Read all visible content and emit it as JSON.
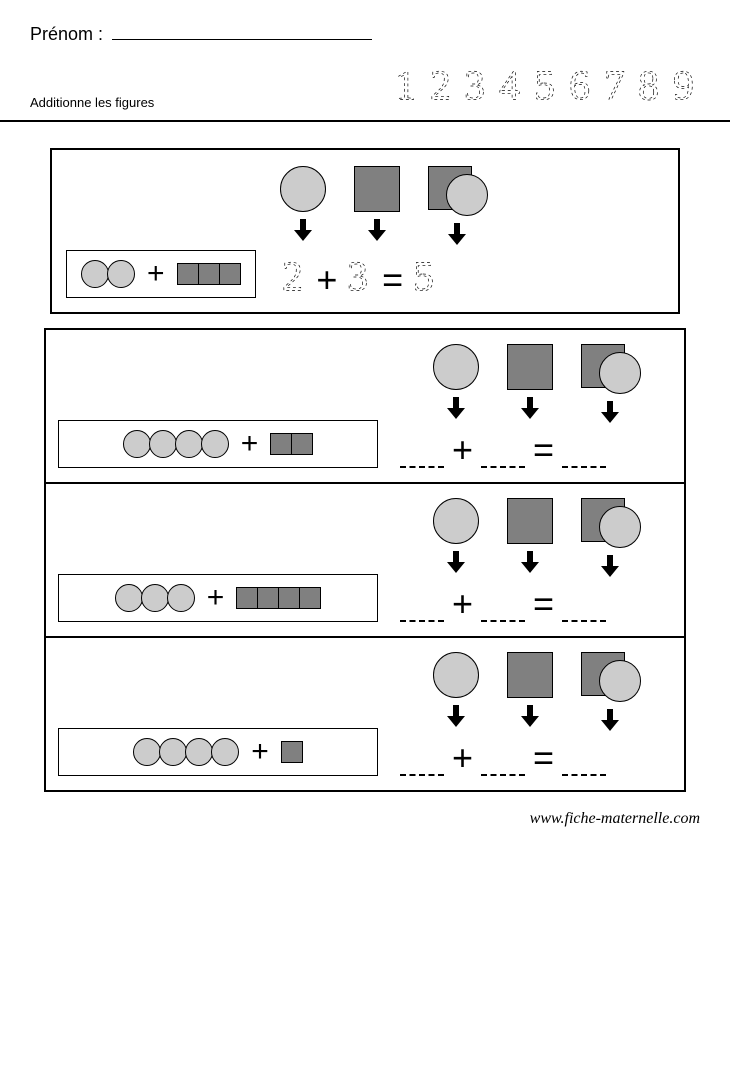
{
  "header": {
    "name_label": "Prénom :",
    "instruction": "Additionne les figures",
    "trace_digits": [
      "1",
      "2",
      "3",
      "4",
      "5",
      "6",
      "7",
      "8",
      "9"
    ],
    "trace_font_size": 40,
    "trace_stroke": "#000000"
  },
  "colors": {
    "circle_fill": "#cccccc",
    "square_fill": "#808080",
    "border": "#000000",
    "page_bg": "#ffffff"
  },
  "shapes": {
    "circle_diameter_small": 28,
    "square_size_small": 22,
    "legend_size": 46
  },
  "operators": {
    "plus": "+",
    "equals": "="
  },
  "example": {
    "circles": 2,
    "squares": 3,
    "equation": {
      "a": "2",
      "op1": "+",
      "b": "3",
      "op2": "=",
      "result": "5"
    }
  },
  "exercises": [
    {
      "circles": 4,
      "squares": 2
    },
    {
      "circles": 3,
      "squares": 4
    },
    {
      "circles": 4,
      "squares": 1
    }
  ],
  "footer": {
    "url": "www.fiche-maternelle.com"
  }
}
